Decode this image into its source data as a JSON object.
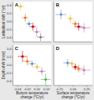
{
  "chart_data": [
    {
      "type": "scatter",
      "title": "A",
      "ylabel": "Latitudinal shift (°/yr)",
      "x": [
        -0.03,
        -0.018,
        -0.008,
        0.002,
        0.012,
        0.022
      ],
      "values": [
        0.38,
        0.1,
        -0.05,
        -0.12,
        -0.25,
        -0.38
      ],
      "x_errors": [
        0.01,
        0.008,
        0.008,
        0.008,
        0.01,
        0.01
      ],
      "y_errors": [
        0.1,
        0.1,
        0.08,
        0.1,
        0.12,
        0.1
      ],
      "colors": [
        "#f0c040",
        "#e07820",
        "#6090d0",
        "#c00000",
        "#c080c0",
        "#808080"
      ],
      "xlim": [
        -0.05,
        0.05
      ],
      "ylim": [
        -0.5,
        0.5
      ],
      "yticks": [
        -0.4,
        -0.2,
        {
          "value": 0,
          "label": "0.0"
        },
        0.2,
        0.4
      ],
      "tick_labels": "y"
    },
    {
      "type": "scatter",
      "title": "B",
      "x": [
        -0.22,
        -0.05,
        0.04,
        0.1,
        0.2
      ],
      "values": [
        0.18,
        0.08,
        -0.05,
        -0.12,
        -0.15
      ],
      "x_errors": [
        0.1,
        0.06,
        0.06,
        0.08,
        0.12
      ],
      "y_errors": [
        0.12,
        0.1,
        0.08,
        0.1,
        0.12
      ],
      "colors": [
        "#6090d0",
        "#f0c040",
        "#e07820",
        "#c00000",
        "#c080c0"
      ],
      "xlim": [
        -0.35,
        0.35
      ],
      "ylim": [
        -0.5,
        0.5
      ],
      "tick_labels": false
    },
    {
      "type": "scatter",
      "title": "C",
      "xlabel": "Bottom temperature\nchange (°C/yr)",
      "ylabel": "Depth shift (m/yr)",
      "x": [
        -0.03,
        -0.02,
        -0.01,
        0.0,
        0.01,
        0.018
      ],
      "values": [
        0.22,
        0.1,
        0.04,
        -0.04,
        -0.15,
        -0.35
      ],
      "x_errors": [
        0.01,
        0.008,
        0.008,
        0.008,
        0.008,
        0.01
      ],
      "y_errors": [
        0.14,
        0.1,
        0.08,
        0.08,
        0.1,
        0.14
      ],
      "colors": [
        "#c00000",
        "#e07820",
        "#6090d0",
        "#f0c040",
        "#c080c0",
        "#50b050"
      ],
      "xlim": [
        -0.05,
        0.03
      ],
      "ylim": [
        -0.5,
        0.5
      ],
      "xticks": [
        -0.04,
        -0.02,
        {
          "value": 0,
          "label": "0.00"
        },
        0.02
      ],
      "yticks": [
        -0.4,
        -0.2,
        {
          "value": 0,
          "label": "0.0"
        },
        0.2,
        0.4
      ]
    },
    {
      "type": "scatter",
      "title": "D",
      "xlabel": "Surface temperature\nchange (°C/yr)",
      "x": [
        -0.1,
        -0.02,
        0.04,
        0.1,
        0.2
      ],
      "values": [
        0.06,
        0.04,
        -0.04,
        -0.08,
        -0.12
      ],
      "x_errors": [
        0.08,
        0.06,
        0.06,
        0.1,
        0.12
      ],
      "y_errors": [
        0.1,
        0.08,
        0.08,
        0.1,
        0.12
      ],
      "colors": [
        "#6090d0",
        "#f0c040",
        "#c00000",
        "#e07820",
        "#c080c0"
      ],
      "xlim": [
        -0.35,
        0.35
      ],
      "ylim": [
        -0.5,
        0.5
      ],
      "xticks": [
        -0.25,
        {
          "value": 0,
          "label": "0.00"
        },
        0.25
      ],
      "tick_labels": "x"
    }
  ]
}
